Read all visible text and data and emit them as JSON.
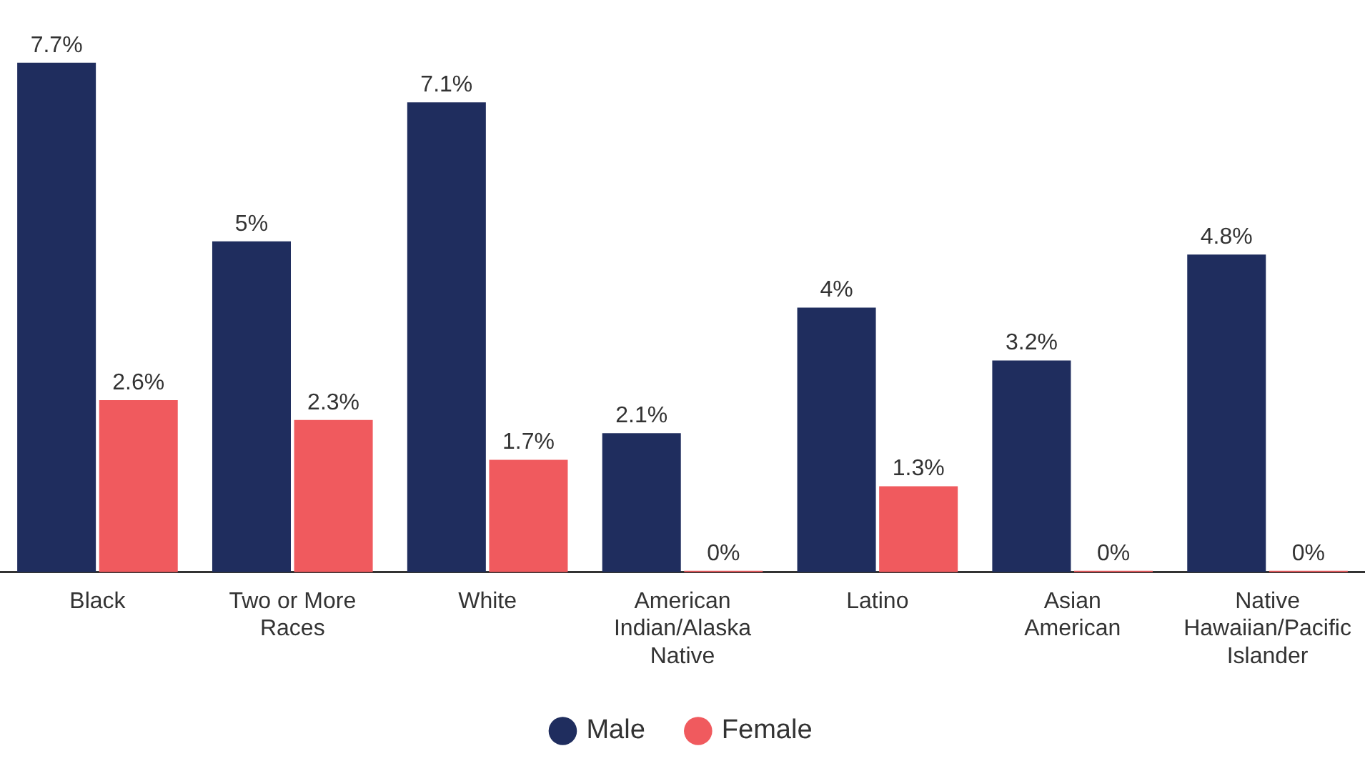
{
  "chart_data": {
    "type": "bar",
    "categories": [
      "Black",
      "Two or More Races",
      "White",
      "American Indian/Alaska Native",
      "Latino",
      "Asian American",
      "Native Hawaiian/Pacific Islander"
    ],
    "series": [
      {
        "name": "Male",
        "color": "#1f2d5e",
        "values": [
          7.7,
          5,
          7.1,
          2.1,
          4,
          3.2,
          4.8
        ],
        "value_labels": [
          "7.7%",
          "5%",
          "7.1%",
          "2.1%",
          "4%",
          "3.2%",
          "4.8%"
        ]
      },
      {
        "name": "Female",
        "color": "#f05a5e",
        "values": [
          2.6,
          2.3,
          1.7,
          0,
          1.3,
          0,
          0
        ],
        "value_labels": [
          "2.6%",
          "2.3%",
          "1.7%",
          "0%",
          "1.3%",
          "0%",
          "0%"
        ]
      }
    ],
    "legend": "bottom",
    "grid": false
  }
}
